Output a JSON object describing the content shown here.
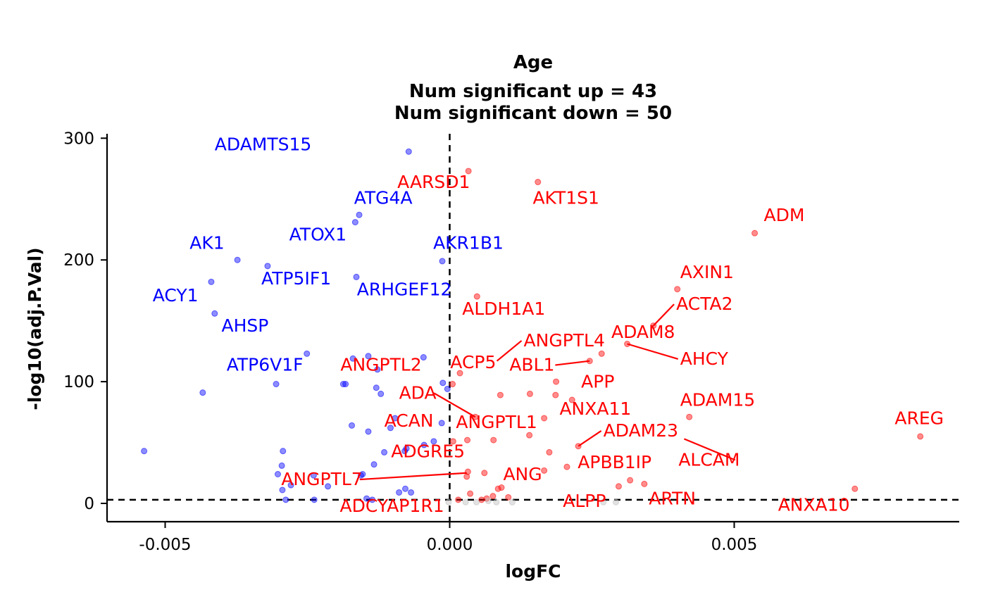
{
  "chart_data": {
    "type": "scatter",
    "title": "Age",
    "subtitle_lines": [
      "Num significant up = 43",
      "Num significant down = 50"
    ],
    "xlabel": "logFC",
    "ylabel": "-log10(adj.P.Val)",
    "xlim": [
      -0.0061,
      0.0089
    ],
    "ylim": [
      -15,
      303
    ],
    "xticks": [
      -0.005,
      0.0,
      0.005
    ],
    "xtick_labels": [
      "-0.005",
      "0.000",
      "0.005"
    ],
    "yticks": [
      0,
      100,
      200,
      300
    ],
    "ytick_labels": [
      "0",
      "100",
      "200",
      "300"
    ],
    "vline_x": 0,
    "hline_y": 3,
    "grid": false,
    "legend": "none",
    "colors": {
      "up": "#ff0000",
      "down": "#0000ff",
      "ns": "#bebebe"
    },
    "series": [
      {
        "group": "down",
        "points": [
          {
            "x": -0.00072,
            "y": 289
          },
          {
            "x": -0.00159,
            "y": 237
          },
          {
            "x": -0.00166,
            "y": 231
          },
          {
            "x": -0.00013,
            "y": 199
          },
          {
            "x": -0.00373,
            "y": 200
          },
          {
            "x": -0.0032,
            "y": 195
          },
          {
            "x": -0.00164,
            "y": 186
          },
          {
            "x": -0.00419,
            "y": 182
          },
          {
            "x": -0.00413,
            "y": 156
          },
          {
            "x": -0.00251,
            "y": 123
          },
          {
            "x": -0.0017,
            "y": 119
          },
          {
            "x": -0.00143,
            "y": 121
          },
          {
            "x": -0.00046,
            "y": 120
          },
          {
            "x": -0.00127,
            "y": 110
          },
          {
            "x": -0.00305,
            "y": 98
          },
          {
            "x": -0.00187,
            "y": 98
          },
          {
            "x": -0.00183,
            "y": 98
          },
          {
            "x": -0.00129,
            "y": 95
          },
          {
            "x": -0.00121,
            "y": 90
          },
          {
            "x": -0.00012,
            "y": 99
          },
          {
            "x": -4e-05,
            "y": 94
          },
          {
            "x": -0.00434,
            "y": 91
          },
          {
            "x": -0.00096,
            "y": 70
          },
          {
            "x": -0.00014,
            "y": 66
          },
          {
            "x": -0.00172,
            "y": 64
          },
          {
            "x": -0.00143,
            "y": 59
          },
          {
            "x": -0.00104,
            "y": 62
          },
          {
            "x": -0.00045,
            "y": 48
          },
          {
            "x": -0.00028,
            "y": 51
          },
          {
            "x": -0.00115,
            "y": 42
          },
          {
            "x": -0.00079,
            "y": 43
          },
          {
            "x": -0.00076,
            "y": 45
          },
          {
            "x": -0.00293,
            "y": 43
          },
          {
            "x": -0.00133,
            "y": 32
          },
          {
            "x": -0.00295,
            "y": 31
          },
          {
            "x": -0.00156,
            "y": 23
          },
          {
            "x": -0.00153,
            "y": 24
          },
          {
            "x": -0.00239,
            "y": 23
          },
          {
            "x": -0.00302,
            "y": 24
          },
          {
            "x": -0.00279,
            "y": 15
          },
          {
            "x": -0.00214,
            "y": 14
          },
          {
            "x": -0.00294,
            "y": 11
          },
          {
            "x": -0.00078,
            "y": 12
          },
          {
            "x": -0.00068,
            "y": 9
          },
          {
            "x": -0.00089,
            "y": 9
          },
          {
            "x": -0.00288,
            "y": 3
          },
          {
            "x": -0.00238,
            "y": 3
          },
          {
            "x": -0.00146,
            "y": 4
          },
          {
            "x": -0.00537,
            "y": 43
          },
          {
            "x": -0.00136,
            "y": 3
          }
        ]
      },
      {
        "group": "up",
        "points": [
          {
            "x": 0.00033,
            "y": 273
          },
          {
            "x": 0.00155,
            "y": 264
          },
          {
            "x": 0.00536,
            "y": 222
          },
          {
            "x": 0.00048,
            "y": 170
          },
          {
            "x": 0.004,
            "y": 176
          },
          {
            "x": 0.00358,
            "y": 146
          },
          {
            "x": 0.00312,
            "y": 131
          },
          {
            "x": 0.00267,
            "y": 123
          },
          {
            "x": 0.00246,
            "y": 117
          },
          {
            "x": 0.00018,
            "y": 107
          },
          {
            "x": 5e-05,
            "y": 98
          },
          {
            "x": 0.00187,
            "y": 100
          },
          {
            "x": 0.00089,
            "y": 89
          },
          {
            "x": 0.00141,
            "y": 90
          },
          {
            "x": 0.00186,
            "y": 89
          },
          {
            "x": 0.00215,
            "y": 85
          },
          {
            "x": 0.00045,
            "y": 71
          },
          {
            "x": 0.00166,
            "y": 70
          },
          {
            "x": 0.00421,
            "y": 71
          },
          {
            "x": 0.0014,
            "y": 56
          },
          {
            "x": 0.00077,
            "y": 52
          },
          {
            "x": 0.00031,
            "y": 52
          },
          {
            "x": 6e-05,
            "y": 51
          },
          {
            "x": 0.00226,
            "y": 47
          },
          {
            "x": 0.00175,
            "y": 42
          },
          {
            "x": 0.00166,
            "y": 27
          },
          {
            "x": 0.00206,
            "y": 30
          },
          {
            "x": 0.00032,
            "y": 26
          },
          {
            "x": 0.00061,
            "y": 25
          },
          {
            "x": 0.0003,
            "y": 22
          },
          {
            "x": 0.00317,
            "y": 19
          },
          {
            "x": 0.00342,
            "y": 16
          },
          {
            "x": 0.00297,
            "y": 14
          },
          {
            "x": 0.00091,
            "y": 13
          },
          {
            "x": 0.00085,
            "y": 12
          },
          {
            "x": 0.00036,
            "y": 8
          },
          {
            "x": 0.00076,
            "y": 6
          },
          {
            "x": 0.00103,
            "y": 5
          },
          {
            "x": 0.00712,
            "y": 12
          },
          {
            "x": 0.00827,
            "y": 55
          },
          {
            "x": 0.00065,
            "y": 4
          },
          {
            "x": 0.00015,
            "y": 3
          },
          {
            "x": 0.00056,
            "y": 3
          }
        ]
      },
      {
        "group": "ns",
        "points": [
          {
            "x": 0.00028,
            "y": 1
          },
          {
            "x": 0.00047,
            "y": 1
          },
          {
            "x": 0.00068,
            "y": 2
          },
          {
            "x": 0.00082,
            "y": 1
          },
          {
            "x": 0.0011,
            "y": 1
          },
          {
            "x": 0.00292,
            "y": 1
          },
          {
            "x": 0.0027,
            "y": 1
          },
          {
            "x": -2e-05,
            "y": 1
          }
        ]
      }
    ],
    "labels": [
      {
        "text": "ADAMTS15",
        "group": "down",
        "lx": -0.00413,
        "ly": 290
      },
      {
        "text": "ATG4A",
        "group": "down",
        "lx": -0.00168,
        "ly": 246
      },
      {
        "text": "ATOX1",
        "group": "down",
        "lx": -0.00282,
        "ly": 216
      },
      {
        "text": "AKR1B1",
        "group": "down",
        "lx": -0.00029,
        "ly": 209
      },
      {
        "text": "AK1",
        "group": "down",
        "lx": -0.00457,
        "ly": 209
      },
      {
        "text": "ATP5IF1",
        "group": "down",
        "lx": -0.00331,
        "ly": 180
      },
      {
        "text": "ARHGEF12",
        "group": "down",
        "lx": -0.00163,
        "ly": 171
      },
      {
        "text": "ACY1",
        "group": "down",
        "lx": -0.00522,
        "ly": 166
      },
      {
        "text": "AHSP",
        "group": "down",
        "lx": -0.00401,
        "ly": 141
      },
      {
        "text": "ATP6V1F",
        "group": "down",
        "lx": -0.00392,
        "ly": 109
      },
      {
        "text": "AARSD1",
        "group": "up",
        "lx": -0.00092,
        "ly": 259
      },
      {
        "text": "AKT1S1",
        "group": "up",
        "lx": 0.00146,
        "ly": 246
      },
      {
        "text": "ADM",
        "group": "up",
        "lx": 0.00552,
        "ly": 232
      },
      {
        "text": "AXIN1",
        "group": "up",
        "lx": 0.00405,
        "ly": 185
      },
      {
        "text": "ALDH1A1",
        "group": "up",
        "lx": 0.00022,
        "ly": 155
      },
      {
        "text": "ACTA2",
        "group": "up",
        "lx": 0.00398,
        "ly": 159,
        "line_to": [
          0.00358,
          146
        ]
      },
      {
        "text": "ADAM8",
        "group": "up",
        "lx": 0.00284,
        "ly": 136
      },
      {
        "text": "ANGPTL4",
        "group": "up",
        "lx": 0.0013,
        "ly": 129,
        "line_to": [
          0.00083,
          117
        ]
      },
      {
        "text": "AHCY",
        "group": "up",
        "lx": 0.00405,
        "ly": 114,
        "line_to": [
          0.00312,
          131
        ]
      },
      {
        "text": "ANGPTL2",
        "group": "up",
        "lx": -0.00192,
        "ly": 109
      },
      {
        "text": "ACP5",
        "group": "up",
        "lx": 1e-05,
        "ly": 111
      },
      {
        "text": "ABL1",
        "group": "up",
        "lx": 0.00105,
        "ly": 109,
        "line_to": [
          0.00246,
          117
        ]
      },
      {
        "text": "APP",
        "group": "up",
        "lx": 0.00231,
        "ly": 95
      },
      {
        "text": "ADA",
        "group": "up",
        "lx": -0.00089,
        "ly": 86,
        "line_to": [
          0.00045,
          71
        ]
      },
      {
        "text": "ADAM15",
        "group": "up",
        "lx": 0.00405,
        "ly": 80
      },
      {
        "text": "ANXA11",
        "group": "up",
        "lx": 0.00193,
        "ly": 73
      },
      {
        "text": "AREG",
        "group": "up",
        "lx": 0.00782,
        "ly": 65
      },
      {
        "text": "ACAN",
        "group": "up",
        "lx": -0.00115,
        "ly": 63
      },
      {
        "text": "ANGPTL1",
        "group": "up",
        "lx": 0.00011,
        "ly": 62
      },
      {
        "text": "ADAM23",
        "group": "up",
        "lx": 0.0027,
        "ly": 55,
        "line_to": [
          0.00226,
          47
        ]
      },
      {
        "text": "ADGRE5",
        "group": "up",
        "lx": -0.00103,
        "ly": 38
      },
      {
        "text": "ALCAM",
        "group": "up",
        "lx": 0.00402,
        "ly": 31,
        "line_to": [
          0.00412,
          53
        ]
      },
      {
        "text": "APBB1IP",
        "group": "up",
        "lx": 0.00225,
        "ly": 29
      },
      {
        "text": "ANGPTL7",
        "group": "up",
        "lx": -0.00296,
        "ly": 15,
        "line_to": [
          0.0003,
          25
        ]
      },
      {
        "text": "ANG",
        "group": "up",
        "lx": 0.00094,
        "ly": 19
      },
      {
        "text": "ALPP",
        "group": "up",
        "lx": 0.00199,
        "ly": -3
      },
      {
        "text": "ARTN",
        "group": "up",
        "lx": 0.0035,
        "ly": -1
      },
      {
        "text": "ANXA10",
        "group": "up",
        "lx": 0.00577,
        "ly": -6
      },
      {
        "text": "ADCYAP1R1",
        "group": "up",
        "lx": -0.00193,
        "ly": -7
      }
    ]
  }
}
